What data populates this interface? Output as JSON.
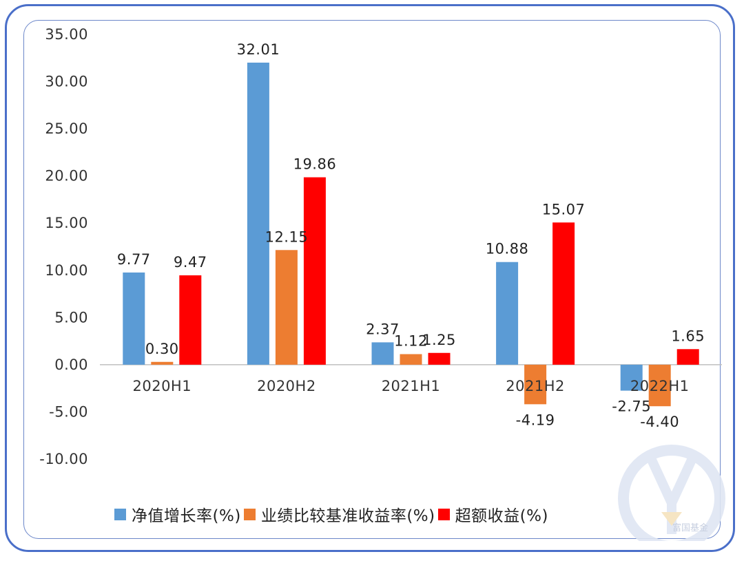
{
  "chart_data": {
    "type": "bar",
    "categories": [
      "2020H1",
      "2020H2",
      "2021H1",
      "2021H2",
      "2022H1"
    ],
    "series": [
      {
        "name": "净值增长率(%)",
        "color": "#5b9bd5",
        "values": [
          9.77,
          32.01,
          2.37,
          10.88,
          -2.75
        ],
        "labels": [
          "9.77",
          "32.01",
          "2.37",
          "10.88",
          "-2.75"
        ]
      },
      {
        "name": "业绩比较基准收益率(%)",
        "color": "#ed7d31",
        "values": [
          0.3,
          12.15,
          1.12,
          -4.19,
          -4.4
        ],
        "labels": [
          "0.30",
          "12.15",
          "1.12",
          "-4.19",
          "-4.40"
        ]
      },
      {
        "name": "超额收益(%)",
        "color": "#ff0000",
        "values": [
          9.47,
          19.86,
          1.25,
          15.07,
          1.65
        ],
        "labels": [
          "9.47",
          "19.86",
          "1.25",
          "15.07",
          "1.65"
        ]
      }
    ],
    "ylim": [
      -10,
      35
    ],
    "yticks": [
      "35.00",
      "30.00",
      "25.00",
      "20.00",
      "15.00",
      "10.00",
      "5.00",
      "0.00",
      "-5.00",
      "-10.00"
    ],
    "ytick_values": [
      35,
      30,
      25,
      20,
      15,
      10,
      5,
      0,
      -5,
      -10
    ],
    "legend_position": "bottom",
    "grid": false
  },
  "watermark": {
    "text": "富国基金"
  }
}
